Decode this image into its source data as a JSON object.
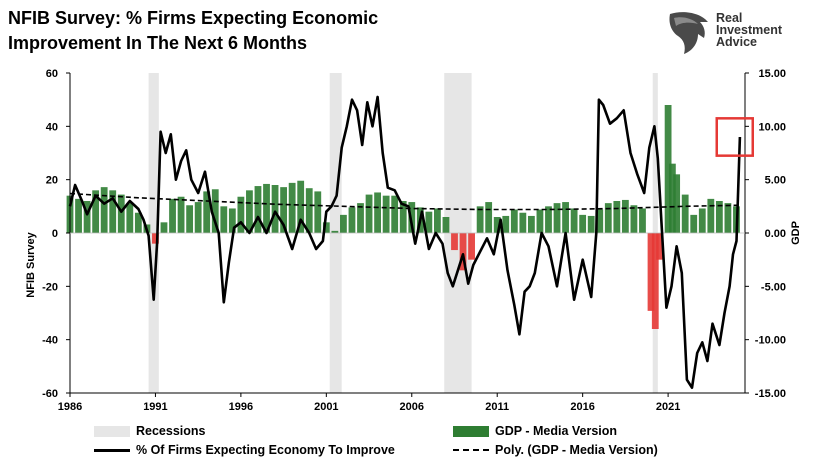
{
  "title": {
    "line1": "NFIB Survey:  % Firms Expecting Economic",
    "line2": "Improvement In The  Next 6 Months"
  },
  "logo": {
    "line1": "Real",
    "line2": "Investment",
    "line3": "Advice",
    "icon": "eagle-head-icon"
  },
  "legend": {
    "recessions": "Recessions",
    "gdp": "GDP - Media Version",
    "nfib": "% Of Firms Expecting Economy To Improve",
    "poly": "Poly. (GDP - Media Version)"
  },
  "colors": {
    "gdp_positive": "#2e7d32",
    "gdp_negative": "#e53935",
    "nfib_line": "#000000",
    "recession_shade": "#e6e6e6",
    "highlight_box": "#e53935"
  },
  "chart_data": {
    "type": "line",
    "ylabel": "NFIB Survey",
    "y2label": "GDP",
    "xlim": [
      1986,
      2025.5
    ],
    "ylim": [
      -60,
      60
    ],
    "y2lim": [
      -15,
      15
    ],
    "x_ticks": [
      "1986",
      "1991",
      "1996",
      "2001",
      "2006",
      "2011",
      "2016",
      "2021"
    ],
    "y_ticks": [
      "-60",
      "-40",
      "-20",
      "0",
      "20",
      "40",
      "60"
    ],
    "y2_ticks": [
      "-15.00",
      "-10.00",
      "-5.00",
      "0.00",
      "5.00",
      "10.00",
      "15.00"
    ],
    "recessions": [
      [
        1990.6,
        1991.2
      ],
      [
        2001.2,
        2001.9
      ],
      [
        2007.9,
        2009.5
      ],
      [
        2020.1,
        2020.4
      ]
    ],
    "highlight": {
      "x": [
        2024.9,
        2025.4
      ],
      "y": [
        29,
        43
      ]
    },
    "series": [
      {
        "name": "% Of Firms Expecting Economy To Improve",
        "kind": "line",
        "x": [
          1986.0,
          1986.3,
          1986.7,
          1987.0,
          1987.5,
          1988.0,
          1988.5,
          1989.0,
          1989.5,
          1990.0,
          1990.3,
          1990.6,
          1990.9,
          1991.1,
          1991.3,
          1991.6,
          1991.9,
          1992.2,
          1992.5,
          1992.8,
          1993.1,
          1993.5,
          1993.9,
          1994.3,
          1994.7,
          1995.0,
          1995.3,
          1995.6,
          1996.0,
          1996.5,
          1997.0,
          1997.5,
          1998.0,
          1998.5,
          1999.0,
          1999.5,
          2000.0,
          2000.4,
          2000.8,
          2001.0,
          2001.3,
          2001.6,
          2001.9,
          2002.2,
          2002.5,
          2002.8,
          2003.1,
          2003.4,
          2003.7,
          2004.0,
          2004.3,
          2004.6,
          2005.0,
          2005.4,
          2005.8,
          2006.2,
          2006.6,
          2007.0,
          2007.4,
          2007.8,
          2008.1,
          2008.4,
          2008.7,
          2009.0,
          2009.3,
          2009.6,
          2010.0,
          2010.4,
          2010.8,
          2011.2,
          2011.6,
          2012.0,
          2012.3,
          2012.6,
          2012.9,
          2013.2,
          2013.6,
          2014.0,
          2014.5,
          2015.0,
          2015.5,
          2016.0,
          2016.5,
          2016.8,
          2016.95,
          2017.2,
          2017.6,
          2018.0,
          2018.4,
          2018.8,
          2019.2,
          2019.6,
          2019.9,
          2020.2,
          2020.4,
          2020.6,
          2020.9,
          2021.2,
          2021.5,
          2021.8,
          2022.1,
          2022.4,
          2022.7,
          2023.0,
          2023.3,
          2023.6,
          2024.0,
          2024.3,
          2024.6,
          2024.8,
          2025.0,
          2025.2
        ],
        "y": [
          10,
          18,
          12,
          7,
          14,
          11,
          13,
          8,
          12,
          9,
          5,
          -1,
          -25,
          -3,
          38,
          30,
          37,
          20,
          27,
          31,
          20,
          15,
          23,
          8,
          0,
          -26,
          -11,
          2,
          4,
          0,
          6,
          0,
          8,
          3,
          -6,
          5,
          0,
          -6,
          -3,
          8,
          10,
          14,
          32,
          40,
          50,
          46,
          33,
          49,
          40,
          51,
          30,
          17,
          16,
          11,
          10,
          -4,
          8,
          -6,
          0,
          -4,
          -15,
          -20,
          -14,
          -8,
          -19,
          -12,
          -7,
          -2,
          -8,
          5,
          -14,
          -27,
          -38,
          -22,
          -20,
          -15,
          0,
          -5,
          -20,
          0,
          -25,
          -10,
          -24,
          0,
          50,
          48,
          41,
          43,
          46,
          30,
          22,
          15,
          32,
          40,
          28,
          5,
          -28,
          -20,
          -5,
          -15,
          -55,
          -58,
          -45,
          -41,
          -48,
          -34,
          -42,
          -30,
          -20,
          -8,
          -3,
          36
        ]
      },
      {
        "name": "GDP - Media Version",
        "kind": "bar",
        "axis": "right",
        "x": [
          1986,
          1986.5,
          1987,
          1987.5,
          1988,
          1988.5,
          1989,
          1989.5,
          1990,
          1990.5,
          1991,
          1991.5,
          1992,
          1992.5,
          1993,
          1993.5,
          1994,
          1994.5,
          1995,
          1995.5,
          1996,
          1996.5,
          1997,
          1997.5,
          1998,
          1998.5,
          1999,
          1999.5,
          2000,
          2000.5,
          2001,
          2001.5,
          2002,
          2002.5,
          2003,
          2003.5,
          2004,
          2004.5,
          2005,
          2005.5,
          2006,
          2006.5,
          2007,
          2007.5,
          2008,
          2008.5,
          2009,
          2009.5,
          2010,
          2010.5,
          2011,
          2011.5,
          2012,
          2012.5,
          2013,
          2013.5,
          2014,
          2014.5,
          2015,
          2015.5,
          2016,
          2016.5,
          2017,
          2017.5,
          2018,
          2018.5,
          2019,
          2019.5,
          2020,
          2020.25,
          2020.5,
          2021,
          2021.25,
          2021.5,
          2022,
          2022.5,
          2023,
          2023.5,
          2024,
          2024.5,
          2025
        ],
        "y": [
          3.5,
          3.2,
          3.0,
          4.0,
          4.3,
          4.0,
          3.6,
          2.8,
          1.9,
          0.8,
          -1.0,
          1.0,
          3.2,
          3.4,
          2.6,
          2.9,
          3.9,
          4.1,
          2.5,
          2.3,
          3.4,
          4.0,
          4.4,
          4.6,
          4.5,
          4.3,
          4.7,
          4.9,
          4.2,
          3.9,
          1.0,
          0.2,
          1.7,
          2.4,
          2.8,
          3.6,
          3.8,
          3.5,
          3.5,
          3.0,
          2.9,
          2.4,
          2.0,
          2.3,
          1.5,
          -1.6,
          -3.5,
          -2.5,
          2.5,
          2.9,
          1.5,
          1.6,
          2.2,
          1.9,
          1.6,
          2.2,
          2.5,
          2.8,
          2.9,
          2.3,
          1.7,
          1.6,
          2.2,
          2.8,
          3.0,
          3.1,
          2.6,
          2.3,
          -7.3,
          -9.0,
          -2.5,
          12.0,
          6.5,
          5.5,
          3.6,
          1.7,
          2.3,
          3.2,
          3.0,
          2.8,
          2.5
        ]
      },
      {
        "name": "Poly. (GDP - Media Version)",
        "kind": "dashed",
        "axis": "right",
        "x": [
          1986,
          1990,
          1994,
          1998,
          2002,
          2006,
          2010,
          2014,
          2018,
          2022,
          2025
        ],
        "y": [
          3.7,
          3.3,
          3.0,
          2.7,
          2.5,
          2.3,
          2.2,
          2.2,
          2.3,
          2.5,
          2.6
        ]
      }
    ]
  }
}
